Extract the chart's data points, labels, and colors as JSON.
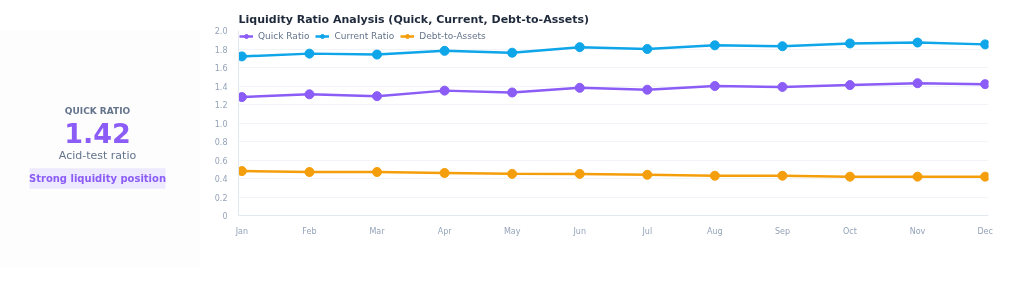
{
  "chart_data": [
    {
      "type": "other",
      "title": "QUICK RATIO",
      "subtitle": "1.42",
      "annotations": [
        "Acid-test ratio",
        "Strong liquidity position"
      ]
    },
    {
      "type": "line",
      "title": "Liquidity Ratio Analysis (Quick, Current, Debt-to-Assets)",
      "categories": [
        "Jan",
        "Feb",
        "Mar",
        "Apr",
        "May",
        "Jun",
        "Jul",
        "Aug",
        "Sep",
        "Oct",
        "Nov",
        "Dec"
      ],
      "series": [
        {
          "name": "Quick Ratio",
          "color": "#8b5cf6",
          "values": [
            1.28,
            1.31,
            1.29,
            1.35,
            1.33,
            1.38,
            1.36,
            1.4,
            1.39,
            1.41,
            1.43,
            1.42
          ]
        },
        {
          "name": "Current Ratio",
          "color": "#0ea5e9",
          "values": [
            1.72,
            1.75,
            1.74,
            1.78,
            1.76,
            1.82,
            1.8,
            1.84,
            1.83,
            1.86,
            1.87,
            1.85
          ]
        },
        {
          "name": "Debt-to-Assets",
          "color": "#f59e0b",
          "values": [
            0.48,
            0.47,
            0.47,
            0.46,
            0.45,
            0.45,
            0.44,
            0.43,
            0.43,
            0.42,
            0.42,
            0.42
          ]
        }
      ],
      "ylim": [
        0,
        2.0
      ],
      "yticks": [
        {
          "value": 0,
          "label": "0"
        },
        {
          "value": 0.2,
          "label": "0.2"
        },
        {
          "value": 0.4,
          "label": "0.4"
        },
        {
          "value": 0.6,
          "label": "0.6"
        },
        {
          "value": 0.8,
          "label": "0.8"
        },
        {
          "value": 1.0,
          "label": "1.0"
        },
        {
          "value": 1.2,
          "label": "1.2"
        },
        {
          "value": 1.4,
          "label": "1.4"
        },
        {
          "value": 1.6,
          "label": "1.6"
        },
        {
          "value": 1.8,
          "label": "1.8"
        },
        {
          "value": 2.0,
          "label": "2.0"
        }
      ],
      "grid": "y",
      "legend": "top left",
      "marker": "circle",
      "line_style": "solid"
    }
  ]
}
